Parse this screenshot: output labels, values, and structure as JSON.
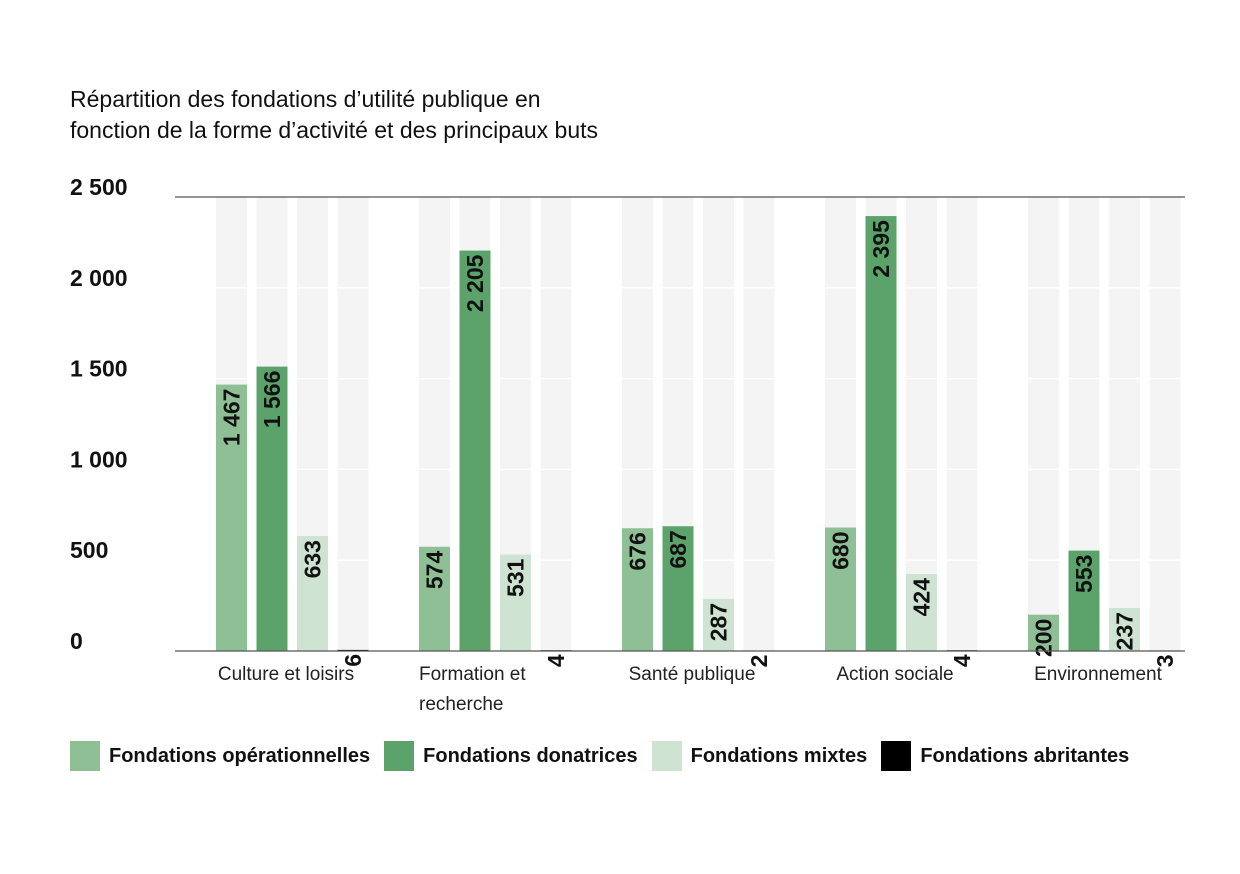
{
  "chart_data": {
    "type": "bar",
    "title": "Répartition des fondations d’utilité publique en fonction de la forme d’activité et des principaux buts",
    "title_lines": [
      "Répartition des fondations d’utilité publique en",
      "fonction de la forme d’activité et des principaux buts"
    ],
    "categories": [
      "Culture et loisirs",
      "Formation et recherche",
      "Santé publique",
      "Action sociale",
      "Environnement"
    ],
    "category_lines": [
      [
        "Culture et loisirs"
      ],
      [
        "Formation et",
        "recherche"
      ],
      [
        "Santé publique"
      ],
      [
        "Action sociale"
      ],
      [
        "Environnement"
      ]
    ],
    "series": [
      {
        "name": "Fondations opérationnelles",
        "color": "#8fbf95",
        "values": [
          1467,
          574,
          676,
          680,
          200
        ],
        "labels": [
          "1 467",
          "574",
          "676",
          "680",
          "200"
        ]
      },
      {
        "name": "Fondations donatrices",
        "color": "#5ba36b",
        "values": [
          1566,
          2205,
          687,
          2395,
          553
        ],
        "labels": [
          "1 566",
          "2 205",
          "687",
          "2 395",
          "553"
        ]
      },
      {
        "name": "Fondations mixtes",
        "color": "#cfe3d2",
        "values": [
          633,
          531,
          287,
          424,
          237
        ],
        "labels": [
          "633",
          "531",
          "287",
          "424",
          "237"
        ]
      },
      {
        "name": "Fondations abritantes",
        "color": "#000000",
        "values": [
          6,
          4,
          2,
          4,
          3
        ],
        "labels": [
          "6",
          "4",
          "2",
          "4",
          "3"
        ]
      }
    ],
    "yticks": [
      0,
      500,
      1000,
      1500,
      2000,
      2500
    ],
    "ytick_labels": [
      "0",
      "500",
      "1 000",
      "1 500",
      "2 000",
      "2 500"
    ],
    "ylim": [
      0,
      2500
    ],
    "xlabel": "",
    "ylabel": "",
    "legend_position": "bottom",
    "grid": true
  }
}
